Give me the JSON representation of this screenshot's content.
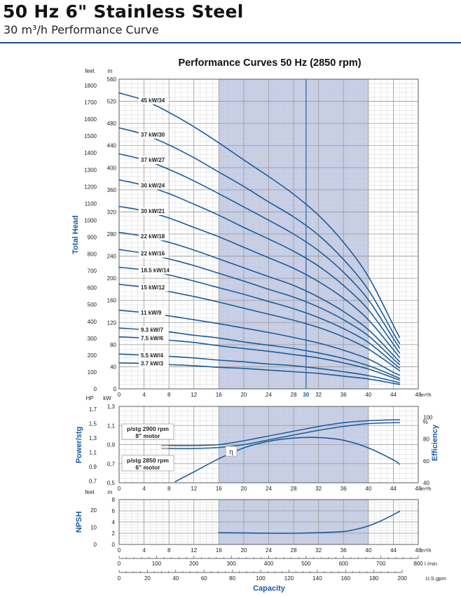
{
  "header": {
    "title": "50 Hz 6\" Stainless Steel",
    "subtitle": "30 m³/h Performance Curve"
  },
  "chart_data": [
    {
      "type": "line",
      "title": "Performance Curves 50 Hz (2850 rpm)",
      "ylabel": "Total Head",
      "yunit_left": "feet",
      "yunit_right": "m",
      "xunit": "m³/h",
      "xlim": [
        0,
        48
      ],
      "ylim": [
        0,
        560
      ],
      "y2lim": [
        0,
        1800
      ],
      "x_ticks": [
        "0",
        "4",
        "8",
        "12",
        "16",
        "20",
        "24",
        "28",
        "30",
        "32",
        "36",
        "40",
        "44",
        "48"
      ],
      "y_ticks_m": [
        "0",
        "40",
        "80",
        "120",
        "160",
        "200",
        "240",
        "280",
        "320",
        "360",
        "400",
        "440",
        "480",
        "520",
        "560"
      ],
      "y_ticks_feet": [
        "0",
        "100",
        "200",
        "300",
        "400",
        "500",
        "600",
        "700",
        "800",
        "900",
        "1000",
        "1100",
        "1200",
        "1300",
        "1400",
        "1500",
        "1600",
        "1700",
        "1800"
      ],
      "recommended_range": [
        16,
        40
      ],
      "rated_flow": 30,
      "series": [
        {
          "name": "45 kW/34",
          "x": [
            0,
            4,
            8,
            12,
            16,
            20,
            24,
            28,
            32,
            36,
            40,
            44,
            45
          ],
          "values": [
            535,
            522,
            500,
            474,
            445,
            414,
            384,
            352,
            314,
            265,
            203,
            115,
            93
          ]
        },
        {
          "name": "37 kW/30",
          "x": [
            0,
            4,
            8,
            12,
            16,
            20,
            24,
            28,
            32,
            36,
            40,
            44,
            45
          ],
          "values": [
            472,
            460,
            441,
            418,
            392,
            366,
            338,
            311,
            278,
            234,
            179,
            101,
            82
          ]
        },
        {
          "name": "37 kW/27",
          "x": [
            0,
            4,
            8,
            12,
            16,
            20,
            24,
            28,
            32,
            36,
            40,
            44,
            45
          ],
          "values": [
            425,
            414,
            397,
            376,
            353,
            329,
            305,
            280,
            250,
            211,
            161,
            91,
            74
          ]
        },
        {
          "name": "30 kW/24",
          "x": [
            0,
            4,
            8,
            12,
            16,
            20,
            24,
            28,
            32,
            36,
            40,
            44,
            45
          ],
          "values": [
            378,
            368,
            353,
            334,
            314,
            292,
            271,
            249,
            222,
            187,
            143,
            81,
            65
          ]
        },
        {
          "name": "30 kW/21",
          "x": [
            0,
            4,
            8,
            12,
            16,
            20,
            24,
            28,
            32,
            36,
            40,
            44,
            45
          ],
          "values": [
            330,
            322,
            309,
            292,
            275,
            256,
            237,
            218,
            194,
            164,
            125,
            71,
            57
          ]
        },
        {
          "name": "22 kW/18",
          "x": [
            0,
            4,
            8,
            12,
            16,
            20,
            24,
            28,
            32,
            36,
            40,
            44,
            45
          ],
          "values": [
            283,
            276,
            265,
            251,
            235,
            219,
            203,
            187,
            166,
            140,
            107,
            61,
            49
          ]
        },
        {
          "name": "22 kW/16",
          "x": [
            0,
            4,
            8,
            12,
            16,
            20,
            24,
            28,
            32,
            36,
            40,
            44,
            45
          ],
          "values": [
            252,
            245,
            235,
            223,
            209,
            195,
            180,
            166,
            148,
            125,
            96,
            54,
            44
          ]
        },
        {
          "name": "18.5 kW/14",
          "x": [
            0,
            4,
            8,
            12,
            16,
            20,
            24,
            28,
            32,
            36,
            40,
            44,
            45
          ],
          "values": [
            220,
            215,
            206,
            195,
            183,
            171,
            158,
            145,
            129,
            109,
            84,
            47,
            38
          ]
        },
        {
          "name": "15 kW/12",
          "x": [
            0,
            4,
            8,
            12,
            16,
            20,
            24,
            28,
            32,
            36,
            40,
            44,
            45
          ],
          "values": [
            189,
            184,
            176,
            167,
            157,
            146,
            135,
            124,
            111,
            94,
            72,
            41,
            33
          ]
        },
        {
          "name": "11 kW/9",
          "x": [
            0,
            4,
            8,
            12,
            16,
            20,
            24,
            28,
            32,
            36,
            40,
            44,
            45
          ],
          "values": [
            142,
            138,
            132,
            125,
            118,
            110,
            102,
            93,
            83,
            70,
            54,
            30,
            25
          ]
        },
        {
          "name": "9.3 kW/7",
          "x": [
            0,
            4,
            8,
            12,
            16,
            20,
            24,
            28,
            32,
            36,
            40,
            44,
            45
          ],
          "values": [
            110,
            107,
            103,
            97,
            92,
            85,
            79,
            73,
            65,
            55,
            42,
            24,
            19
          ]
        },
        {
          "name": "7.5 kW/6",
          "x": [
            0,
            4,
            8,
            12,
            16,
            20,
            24,
            28,
            32,
            36,
            40,
            44,
            45
          ],
          "values": [
            94,
            92,
            88,
            84,
            78,
            73,
            68,
            62,
            56,
            47,
            36,
            20,
            16
          ]
        },
        {
          "name": "5.5 kW/4",
          "x": [
            0,
            4,
            8,
            12,
            16,
            20,
            24,
            28,
            32,
            36,
            40,
            44,
            45
          ],
          "values": [
            63,
            61,
            59,
            56,
            52,
            49,
            45,
            42,
            37,
            31,
            24,
            14,
            11
          ]
        },
        {
          "name": "3.7 kW/3",
          "x": [
            0,
            4,
            8,
            12,
            16,
            20,
            24,
            28,
            32,
            36,
            40,
            44,
            45
          ],
          "values": [
            47,
            46,
            44,
            42,
            39,
            37,
            34,
            31,
            28,
            23,
            18,
            10,
            8
          ]
        }
      ]
    },
    {
      "type": "line",
      "ylabel_left": "Power/stg",
      "ylabel_right": "Efficiency",
      "unit_hp": "HP",
      "unit_kw": "kW",
      "unit_eff": "%",
      "xunit": "m³/h",
      "xlim": [
        0,
        48
      ],
      "ylim_hp": [
        0.5,
        1.3
      ],
      "hp_ticks": [
        "0,7",
        "0,9",
        "1,1",
        "1,3",
        "1,5",
        "1,7"
      ],
      "kw_ticks": [
        "0,5",
        "0,7",
        "0,9",
        "1,1",
        "1,3"
      ],
      "eff_ticks": [
        "40",
        "60",
        "80",
        "100"
      ],
      "x_ticks": [
        "0",
        "4",
        "8",
        "12",
        "16",
        "20",
        "24",
        "28",
        "32",
        "36",
        "40",
        "44",
        "48"
      ],
      "labels": {
        "p2900_line1": "p/stg 2900 rpm",
        "p2900_line2": "8\" motor",
        "p2850_line1": "p/stg 2850 rpm",
        "p2850_line2": "6\" motor",
        "eta": "η"
      },
      "series": [
        {
          "name": "p/stg 2900 rpm 8\" motor",
          "x": [
            8,
            12,
            16,
            20,
            24,
            28,
            32,
            36,
            40,
            44,
            45
          ],
          "values": [
            0.89,
            0.89,
            0.9,
            0.94,
            0.99,
            1.04,
            1.09,
            1.13,
            1.15,
            1.16,
            1.16
          ]
        },
        {
          "name": "p/stg 2850 rpm 6\" motor",
          "x": [
            8,
            12,
            16,
            20,
            24,
            28,
            32,
            36,
            40,
            44,
            45
          ],
          "values": [
            0.86,
            0.86,
            0.87,
            0.9,
            0.95,
            1.0,
            1.05,
            1.09,
            1.12,
            1.13,
            1.13
          ]
        },
        {
          "name": "η",
          "x": [
            9,
            12,
            16,
            20,
            24,
            28,
            32,
            36,
            40,
            44,
            45
          ],
          "values": [
            41,
            50,
            62,
            72,
            78,
            81,
            81.5,
            79,
            72,
            61,
            57
          ]
        }
      ]
    },
    {
      "type": "line",
      "ylabel": "NPSH",
      "yunit_left": "feet",
      "yunit_right": "m",
      "xunit": "m³/h",
      "xlim": [
        0,
        48
      ],
      "ylim": [
        0,
        8
      ],
      "m_ticks": [
        "0",
        "2",
        "4",
        "6",
        "8"
      ],
      "feet_ticks": [
        "0",
        "10",
        "20"
      ],
      "x_ticks": [
        "0",
        "4",
        "8",
        "12",
        "16",
        "20",
        "24",
        "28",
        "32",
        "36",
        "40",
        "44",
        "48"
      ],
      "series": [
        {
          "name": "NPSH",
          "x": [
            16,
            20,
            24,
            28,
            32,
            36,
            38,
            40,
            42,
            44,
            45
          ],
          "values": [
            2.1,
            2.05,
            2.0,
            2.0,
            2.1,
            2.3,
            2.7,
            3.3,
            4.2,
            5.3,
            5.9
          ]
        }
      ]
    }
  ],
  "bottom_axes": {
    "lmin_unit": "l /min",
    "lmin_ticks": [
      "0",
      "100",
      "200",
      "300",
      "400",
      "500",
      "600",
      "700",
      "800"
    ],
    "gpm_unit": "U.S.gpm",
    "gpm_ticks": [
      "0",
      "20",
      "40",
      "60",
      "80",
      "100",
      "120",
      "140",
      "160",
      "180",
      "200"
    ],
    "xlabel": "Capacity"
  },
  "colors": {
    "curve": "#1c5c9c",
    "band": "#c6cde6",
    "label_blue": "#1d5aa0",
    "rule": "#1d4e89",
    "grid": "#9a9a9a",
    "grid_minor": "#d6d6d6"
  }
}
